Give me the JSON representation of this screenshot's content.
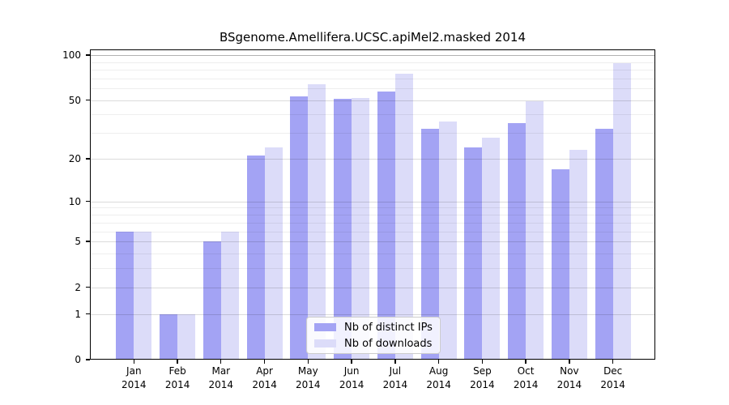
{
  "title": "BSgenome.Amellifera.UCSC.apiMel2.masked 2014",
  "chart_data": {
    "type": "bar",
    "title": "BSgenome.Amellifera.UCSC.apiMel2.masked 2014",
    "categories": [
      "Jan 2014",
      "Feb 2014",
      "Mar 2014",
      "Apr 2014",
      "May 2014",
      "Jun 2014",
      "Jul 2014",
      "Aug 2014",
      "Sep 2014",
      "Oct 2014",
      "Nov 2014",
      "Dec 2014"
    ],
    "month_names": [
      "Jan",
      "Feb",
      "Mar",
      "Apr",
      "May",
      "Jun",
      "Jul",
      "Aug",
      "Sep",
      "Oct",
      "Nov",
      "Dec"
    ],
    "year": "2014",
    "series": [
      {
        "name": "Nb of distinct IPs",
        "values": [
          6,
          1,
          5,
          21,
          53,
          51,
          57,
          32,
          24,
          35,
          17,
          32
        ]
      },
      {
        "name": "Nb of downloads",
        "values": [
          6,
          1,
          6,
          24,
          64,
          52,
          75,
          36,
          28,
          49,
          23,
          88
        ]
      }
    ],
    "xlabel": "",
    "ylabel": "",
    "yscale": "log1p",
    "ylim": [
      0,
      110
    ],
    "y_major_ticks": [
      0,
      1,
      2,
      5,
      10,
      20,
      50,
      100
    ],
    "y_minor_gridlines": [
      3,
      4,
      6,
      7,
      8,
      9,
      30,
      40,
      60,
      70,
      80,
      90
    ],
    "grid": true,
    "legend_position": "lower center"
  },
  "colors": {
    "ips_bar": "#a3a3f4",
    "downloads_bar": "#dcdcf9",
    "grid_major": "rgba(0,0,0,0.14)",
    "grid_minor": "rgba(0,0,0,0.065)",
    "grid_top": "rgba(0,0,0,0.30)",
    "axis": "#000000",
    "legend_bg": "rgba(255,255,255,0.85)",
    "legend_border": "#cccccc"
  }
}
